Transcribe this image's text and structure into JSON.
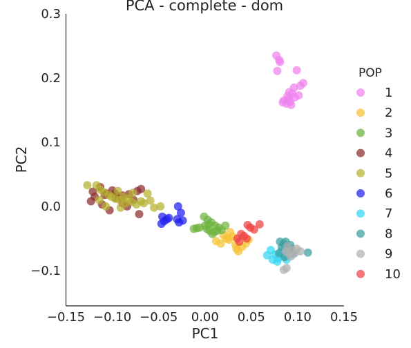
{
  "chart_data": {
    "type": "scatter",
    "title": "PCA - complete - dom",
    "xlabel": "PC1",
    "ylabel": "PC2",
    "xlim": [
      -0.15,
      0.15
    ],
    "ylim": [
      -0.155,
      0.3
    ],
    "xticks": [
      -0.15,
      -0.1,
      -0.05,
      0.0,
      0.05,
      0.1,
      0.15
    ],
    "xtick_labels": [
      "−0.15",
      "−0.10",
      "−0.05",
      "0.00",
      "0.05",
      "0.10",
      "0.15"
    ],
    "yticks": [
      -0.1,
      0.0,
      0.1,
      0.2,
      0.3
    ],
    "ytick_labels": [
      "−0.1",
      "0.0",
      "0.1",
      "0.2",
      "0.3"
    ],
    "grid": false,
    "legend": {
      "title": "POP",
      "placement": "right"
    },
    "series": [
      {
        "name": "1",
        "color": "#ee82ee",
        "points": [
          [
            0.077,
            0.235
          ],
          [
            0.08,
            0.228
          ],
          [
            0.081,
            0.225
          ],
          [
            0.078,
            0.211
          ],
          [
            0.099,
            0.212
          ],
          [
            0.096,
            0.185
          ],
          [
            0.103,
            0.188
          ],
          [
            0.106,
            0.192
          ],
          [
            0.091,
            0.178
          ],
          [
            0.094,
            0.176
          ],
          [
            0.089,
            0.172
          ],
          [
            0.097,
            0.17
          ],
          [
            0.101,
            0.173
          ],
          [
            0.085,
            0.165
          ],
          [
            0.084,
            0.162
          ],
          [
            0.092,
            0.163
          ],
          [
            0.088,
            0.16
          ],
          [
            0.093,
            0.158
          ],
          [
            0.09,
            0.167
          ]
        ]
      },
      {
        "name": "2",
        "color": "#f5c22f",
        "points": [
          [
            0.02,
            -0.045
          ],
          [
            0.023,
            -0.05
          ],
          [
            0.026,
            -0.052
          ],
          [
            0.03,
            -0.047
          ],
          [
            0.017,
            -0.058
          ],
          [
            0.033,
            -0.06
          ],
          [
            0.036,
            -0.07
          ],
          [
            0.04,
            -0.063
          ],
          [
            0.044,
            -0.058
          ],
          [
            0.012,
            -0.054
          ],
          [
            0.027,
            -0.04
          ],
          [
            0.034,
            -0.066
          ],
          [
            0.047,
            -0.052
          ]
        ]
      },
      {
        "name": "3",
        "color": "#6db33f",
        "points": [
          [
            -0.001,
            -0.016
          ],
          [
            0.003,
            -0.021
          ],
          [
            0.007,
            -0.025
          ],
          [
            0.011,
            -0.03
          ],
          [
            0.0,
            -0.03
          ],
          [
            0.002,
            -0.035
          ],
          [
            0.005,
            -0.038
          ],
          [
            -0.006,
            -0.033
          ],
          [
            0.008,
            -0.043
          ],
          [
            0.013,
            -0.038
          ],
          [
            0.015,
            -0.033
          ],
          [
            0.018,
            -0.037
          ],
          [
            0.022,
            -0.03
          ],
          [
            -0.012,
            -0.035
          ],
          [
            0.01,
            -0.04
          ],
          [
            0.004,
            -0.028
          ],
          [
            -0.009,
            -0.034
          ]
        ]
      },
      {
        "name": "4",
        "color": "#8b2c2c",
        "points": [
          [
            -0.121,
            0.023
          ],
          [
            -0.108,
            0.018
          ],
          [
            -0.113,
            0.03
          ],
          [
            -0.106,
            0.02
          ],
          [
            -0.1,
            0.025
          ],
          [
            -0.094,
            0.015
          ],
          [
            -0.089,
            0.017
          ],
          [
            -0.096,
            0.013
          ],
          [
            -0.082,
            0.019
          ],
          [
            -0.073,
            0.024
          ],
          [
            -0.069,
            0.027
          ],
          [
            -0.119,
            0.015
          ],
          [
            -0.123,
            0.008
          ],
          [
            -0.111,
            0.003
          ],
          [
            -0.103,
            -0.006
          ],
          [
            -0.071,
            -0.012
          ],
          [
            -0.084,
            0.0
          ],
          [
            -0.077,
            0.01
          ],
          [
            -0.089,
            0.005
          ],
          [
            -0.097,
            0.02
          ]
        ]
      },
      {
        "name": "5",
        "color": "#b5b230",
        "points": [
          [
            -0.127,
            0.033
          ],
          [
            -0.117,
            0.033
          ],
          [
            -0.113,
            0.026
          ],
          [
            -0.109,
            0.022
          ],
          [
            -0.104,
            0.018
          ],
          [
            -0.101,
            0.015
          ],
          [
            -0.097,
            0.012
          ],
          [
            -0.092,
            0.01
          ],
          [
            -0.088,
            0.015
          ],
          [
            -0.083,
            0.012
          ],
          [
            -0.079,
            0.007
          ],
          [
            -0.074,
            0.003
          ],
          [
            -0.069,
            0.008
          ],
          [
            -0.066,
            0.005
          ],
          [
            -0.062,
            0.02
          ],
          [
            -0.059,
            0.009
          ],
          [
            -0.055,
            -0.002
          ],
          [
            -0.048,
            0.0
          ],
          [
            -0.086,
            0.005
          ],
          [
            -0.091,
            -0.002
          ],
          [
            -0.107,
            0.0
          ],
          [
            -0.114,
            0.01
          ],
          [
            -0.078,
            0.021
          ],
          [
            -0.094,
            0.024
          ]
        ]
      },
      {
        "name": "6",
        "color": "#1f1fef",
        "points": [
          [
            -0.046,
            -0.016
          ],
          [
            -0.044,
            -0.023
          ],
          [
            -0.041,
            -0.02
          ],
          [
            -0.039,
            -0.018
          ],
          [
            -0.047,
            -0.027
          ],
          [
            -0.029,
            0.0
          ],
          [
            -0.026,
            -0.01
          ],
          [
            -0.024,
            -0.022
          ],
          [
            -0.028,
            -0.025
          ],
          [
            -0.03,
            -0.02
          ]
        ]
      },
      {
        "name": "7",
        "color": "#33d7f2",
        "points": [
          [
            0.071,
            -0.068
          ],
          [
            0.076,
            -0.075
          ],
          [
            0.079,
            -0.081
          ],
          [
            0.073,
            -0.083
          ],
          [
            0.067,
            -0.076
          ],
          [
            0.085,
            -0.078
          ],
          [
            0.082,
            -0.07
          ],
          [
            0.078,
            -0.086
          ],
          [
            0.088,
            -0.083
          ]
        ]
      },
      {
        "name": "8",
        "color": "#3a9fa0",
        "points": [
          [
            0.081,
            -0.055
          ],
          [
            0.085,
            -0.058
          ],
          [
            0.089,
            -0.062
          ],
          [
            0.093,
            -0.066
          ],
          [
            0.083,
            -0.063
          ],
          [
            0.087,
            -0.055
          ],
          [
            0.08,
            -0.073
          ],
          [
            0.086,
            -0.079
          ],
          [
            0.09,
            -0.068
          ],
          [
            0.111,
            -0.072
          ],
          [
            0.095,
            -0.074
          ],
          [
            0.092,
            -0.06
          ]
        ]
      },
      {
        "name": "9",
        "color": "#b0b0b0",
        "points": [
          [
            0.087,
            -0.07
          ],
          [
            0.091,
            -0.075
          ],
          [
            0.094,
            -0.068
          ],
          [
            0.099,
            -0.066
          ],
          [
            0.085,
            -0.099
          ],
          [
            0.088,
            -0.096
          ],
          [
            0.093,
            -0.078
          ],
          [
            0.103,
            -0.07
          ],
          [
            0.097,
            -0.073
          ],
          [
            0.089,
            -0.062
          ]
        ]
      },
      {
        "name": "10",
        "color": "#ee4040",
        "points": [
          [
            0.035,
            -0.05
          ],
          [
            0.039,
            -0.043
          ],
          [
            0.046,
            -0.029
          ],
          [
            0.049,
            -0.033
          ],
          [
            0.053,
            -0.036
          ],
          [
            0.059,
            -0.028
          ],
          [
            0.045,
            -0.05
          ],
          [
            0.037,
            -0.055
          ],
          [
            0.042,
            -0.046
          ]
        ]
      }
    ]
  }
}
